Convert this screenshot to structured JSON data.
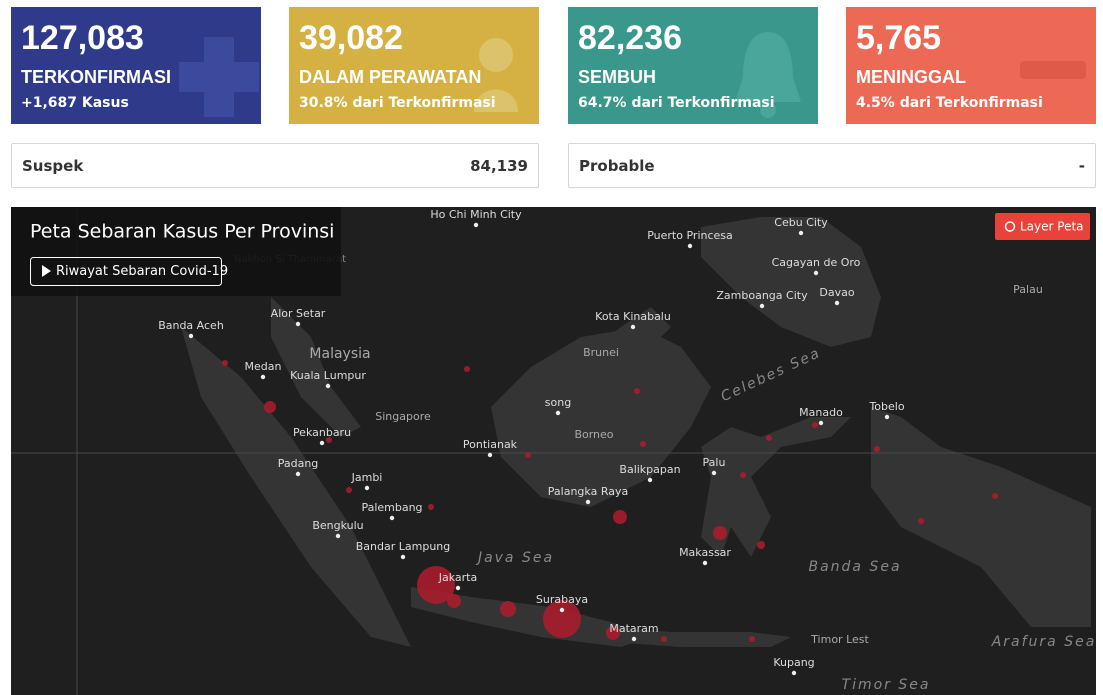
{
  "cards": [
    {
      "value": "127,083",
      "label": "TERKONFIRMASI",
      "sub": "+1,687 Kasus"
    },
    {
      "value": "39,082",
      "label": "DALAM PERAWATAN",
      "sub": "30.8% dari Terkonfirmasi"
    },
    {
      "value": "82,236",
      "label": "SEMBUH",
      "sub": "64.7% dari Terkonfirmasi"
    },
    {
      "value": "5,765",
      "label": "MENINGGAL",
      "sub": "4.5% dari Terkonfirmasi"
    }
  ],
  "stats": [
    {
      "label": "Suspek",
      "value": "84,139"
    },
    {
      "label": "Probable",
      "value": "-"
    }
  ],
  "map": {
    "title": "Peta Sebaran Kasus Per Provinsi",
    "history_button": "Riwayat Sebaran Covid-19",
    "layer_button": "Layer Peta",
    "places": [
      "Ho Chi Minh City",
      "Puerto Princesa",
      "Cebu City",
      "Nakhon Si Thammarat",
      "Cagayan de Oro",
      "Zamboanga City",
      "Davao",
      "Palau",
      "Banda Aceh",
      "Alor Setar",
      "Kota Kinabalu",
      "Malaysia",
      "Brunei",
      "Medan",
      "Kuala Lumpur",
      "song",
      "Singapore",
      "Manado",
      "Tobelo",
      "Pekanbaru",
      "Borneo",
      "Pontianak",
      "Padang",
      "Palu",
      "Balikpapan",
      "Jambi",
      "Palangka Raya",
      "Palembang",
      "Bengkulu",
      "Bandar Lampung",
      "Makassar",
      "Jakarta",
      "Surabaya",
      "Mataram",
      "Timor Lest",
      "Kupang"
    ],
    "seas": [
      "Celebes Sea",
      "Java Sea",
      "Banda Sea",
      "Arafura Sea",
      "Timor Sea"
    ]
  }
}
